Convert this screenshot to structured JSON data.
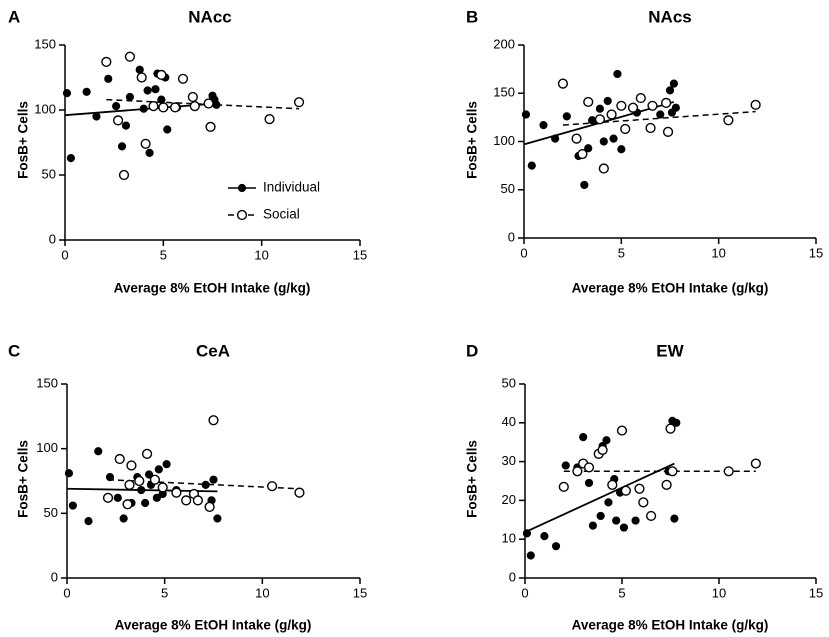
{
  "chart_data": [
    {
      "type": "scatter",
      "panel_letter": "A",
      "title": "NAcc",
      "xlabel": "Average 8% EtOH Intake (g/kg)",
      "ylabel": "FosB+ Cells",
      "xlim": [
        0,
        15
      ],
      "ylim": [
        0,
        150
      ],
      "xticks": [
        0,
        5,
        10,
        15
      ],
      "yticks": [
        0,
        50,
        100,
        150
      ],
      "legend": {
        "placement": "bottom-center",
        "entries": [
          {
            "label": "Individual",
            "marker": "filled",
            "line": "solid"
          },
          {
            "label": "Social",
            "marker": "open",
            "line": "dashed"
          }
        ]
      },
      "series": [
        {
          "name": "Individual",
          "marker": "filled",
          "line": "solid",
          "points": [
            [
              0.1,
              113
            ],
            [
              0.3,
              63
            ],
            [
              1.1,
              114
            ],
            [
              1.6,
              95
            ],
            [
              2.2,
              124
            ],
            [
              2.6,
              103
            ],
            [
              2.9,
              72
            ],
            [
              3.1,
              88
            ],
            [
              3.3,
              110
            ],
            [
              3.8,
              131
            ],
            [
              4.0,
              101
            ],
            [
              4.2,
              115
            ],
            [
              4.3,
              67
            ],
            [
              4.6,
              116
            ],
            [
              4.7,
              128
            ],
            [
              4.9,
              108
            ],
            [
              5.1,
              125
            ],
            [
              5.2,
              85
            ],
            [
              5.7,
              102
            ],
            [
              7.5,
              111
            ],
            [
              7.6,
              108
            ],
            [
              7.7,
              104
            ]
          ],
          "fit": [
            [
              0,
              96
            ],
            [
              7.7,
              105
            ]
          ]
        },
        {
          "name": "Social",
          "marker": "open",
          "line": "dashed",
          "points": [
            [
              2.1,
              137
            ],
            [
              2.7,
              92
            ],
            [
              3.0,
              50
            ],
            [
              3.3,
              141
            ],
            [
              3.9,
              125
            ],
            [
              4.1,
              74
            ],
            [
              4.5,
              103
            ],
            [
              4.9,
              127
            ],
            [
              5.0,
              102
            ],
            [
              5.6,
              102
            ],
            [
              6.0,
              124
            ],
            [
              6.5,
              110
            ],
            [
              6.6,
              103
            ],
            [
              7.3,
              105
            ],
            [
              7.4,
              87
            ],
            [
              10.4,
              93
            ],
            [
              11.9,
              106
            ]
          ],
          "fit": [
            [
              2.1,
              108
            ],
            [
              11.9,
              101
            ]
          ]
        }
      ]
    },
    {
      "type": "scatter",
      "panel_letter": "B",
      "title": "NAcs",
      "xlabel": "Average 8% EtOH Intake (g/kg)",
      "ylabel": "FosB+ Cells",
      "xlim": [
        0,
        15
      ],
      "ylim": [
        0,
        200
      ],
      "xticks": [
        0,
        5,
        10,
        15
      ],
      "yticks": [
        0,
        50,
        100,
        150,
        200
      ],
      "series": [
        {
          "name": "Individual",
          "marker": "filled",
          "line": "solid",
          "points": [
            [
              0.1,
              128
            ],
            [
              0.4,
              75
            ],
            [
              1.0,
              117
            ],
            [
              1.6,
              103
            ],
            [
              2.2,
              126
            ],
            [
              2.8,
              85
            ],
            [
              3.1,
              55
            ],
            [
              3.3,
              93
            ],
            [
              3.5,
              122
            ],
            [
              3.9,
              134
            ],
            [
              4.1,
              100
            ],
            [
              4.3,
              142
            ],
            [
              4.6,
              103
            ],
            [
              4.8,
              170
            ],
            [
              5.0,
              92
            ],
            [
              5.2,
              112
            ],
            [
              5.8,
              130
            ],
            [
              7.0,
              128
            ],
            [
              7.5,
              153
            ],
            [
              7.6,
              130
            ],
            [
              7.7,
              160
            ],
            [
              7.8,
              135
            ]
          ],
          "fit": [
            [
              0,
              97
            ],
            [
              7.7,
              141
            ]
          ]
        },
        {
          "name": "Social",
          "marker": "open",
          "line": "dashed",
          "points": [
            [
              2.0,
              160
            ],
            [
              2.7,
              103
            ],
            [
              3.0,
              87
            ],
            [
              3.3,
              141
            ],
            [
              3.9,
              123
            ],
            [
              4.1,
              72
            ],
            [
              4.5,
              128
            ],
            [
              5.0,
              137
            ],
            [
              5.2,
              113
            ],
            [
              5.6,
              135
            ],
            [
              6.0,
              145
            ],
            [
              6.5,
              114
            ],
            [
              6.6,
              137
            ],
            [
              7.3,
              140
            ],
            [
              7.4,
              110
            ],
            [
              10.5,
              122
            ],
            [
              11.9,
              138
            ]
          ],
          "fit": [
            [
              2.0,
              117
            ],
            [
              11.9,
              131
            ]
          ]
        }
      ]
    },
    {
      "type": "scatter",
      "panel_letter": "C",
      "title": "CeA",
      "xlabel": "Average 8% EtOH Intake (g/kg)",
      "ylabel": "FosB+ Cells",
      "xlim": [
        0,
        15
      ],
      "ylim": [
        0,
        150
      ],
      "xticks": [
        0,
        5,
        10,
        15
      ],
      "yticks": [
        0,
        50,
        100,
        150
      ],
      "series": [
        {
          "name": "Individual",
          "marker": "filled",
          "line": "solid",
          "points": [
            [
              0.1,
              81
            ],
            [
              0.3,
              56
            ],
            [
              1.1,
              44
            ],
            [
              1.6,
              98
            ],
            [
              2.2,
              78
            ],
            [
              2.6,
              62
            ],
            [
              2.9,
              46
            ],
            [
              3.3,
              58
            ],
            [
              3.6,
              78
            ],
            [
              3.8,
              68
            ],
            [
              4.0,
              58
            ],
            [
              4.2,
              80
            ],
            [
              4.3,
              72
            ],
            [
              4.6,
              62
            ],
            [
              4.7,
              84
            ],
            [
              4.9,
              65
            ],
            [
              5.1,
              88
            ],
            [
              5.6,
              68
            ],
            [
              7.1,
              72
            ],
            [
              7.4,
              60
            ],
            [
              7.5,
              76
            ],
            [
              7.7,
              46
            ]
          ],
          "fit": [
            [
              0,
              69
            ],
            [
              7.7,
              67
            ]
          ]
        },
        {
          "name": "Social",
          "marker": "open",
          "line": "dashed",
          "points": [
            [
              2.1,
              62
            ],
            [
              2.7,
              92
            ],
            [
              3.1,
              57
            ],
            [
              3.2,
              72
            ],
            [
              3.3,
              87
            ],
            [
              3.7,
              75
            ],
            [
              4.1,
              96
            ],
            [
              4.5,
              76
            ],
            [
              4.9,
              70
            ],
            [
              5.6,
              66
            ],
            [
              6.1,
              60
            ],
            [
              6.5,
              65
            ],
            [
              6.7,
              60
            ],
            [
              7.3,
              55
            ],
            [
              7.5,
              122
            ],
            [
              10.5,
              71
            ],
            [
              11.9,
              66
            ]
          ],
          "fit": [
            [
              2.1,
              76
            ],
            [
              11.9,
              69
            ]
          ]
        }
      ]
    },
    {
      "type": "scatter",
      "panel_letter": "D",
      "title": "EW",
      "xlabel": "Average 8% EtOH Intake (g/kg)",
      "ylabel": "FosB+ Cells",
      "xlim": [
        0,
        15
      ],
      "ylim": [
        0,
        50
      ],
      "xticks": [
        0,
        5,
        10,
        15
      ],
      "yticks": [
        0,
        10,
        20,
        30,
        40,
        50
      ],
      "series": [
        {
          "name": "Individual",
          "marker": "filled",
          "line": "solid",
          "points": [
            [
              0.1,
              11.5
            ],
            [
              0.3,
              5.8
            ],
            [
              1.0,
              10.8
            ],
            [
              1.6,
              8.2
            ],
            [
              2.1,
              29.0
            ],
            [
              2.7,
              28.5
            ],
            [
              3.0,
              36.3
            ],
            [
              3.3,
              24.5
            ],
            [
              3.5,
              13.5
            ],
            [
              3.9,
              16.0
            ],
            [
              4.0,
              34.0
            ],
            [
              4.2,
              35.5
            ],
            [
              4.3,
              19.5
            ],
            [
              4.6,
              25.5
            ],
            [
              4.7,
              14.8
            ],
            [
              4.9,
              22.0
            ],
            [
              5.1,
              13.0
            ],
            [
              5.7,
              14.8
            ],
            [
              7.4,
              27.5
            ],
            [
              7.6,
              40.5
            ],
            [
              7.7,
              15.3
            ],
            [
              7.8,
              40.0
            ]
          ],
          "fit": [
            [
              0,
              11.8
            ],
            [
              7.7,
              29.5
            ]
          ]
        },
        {
          "name": "Social",
          "marker": "open",
          "line": "dashed",
          "points": [
            [
              2.0,
              23.5
            ],
            [
              2.7,
              27.5
            ],
            [
              3.0,
              29.5
            ],
            [
              3.3,
              28.5
            ],
            [
              3.8,
              32.0
            ],
            [
              4.0,
              33.0
            ],
            [
              4.5,
              24.0
            ],
            [
              5.0,
              38.0
            ],
            [
              5.2,
              22.5
            ],
            [
              5.9,
              23.0
            ],
            [
              6.1,
              19.5
            ],
            [
              6.5,
              16.0
            ],
            [
              7.3,
              24.0
            ],
            [
              7.5,
              38.5
            ],
            [
              7.6,
              27.5
            ],
            [
              10.5,
              27.5
            ],
            [
              11.9,
              29.5
            ]
          ],
          "fit": [
            [
              2.0,
              27.5
            ],
            [
              11.9,
              27.5
            ]
          ]
        }
      ]
    }
  ]
}
